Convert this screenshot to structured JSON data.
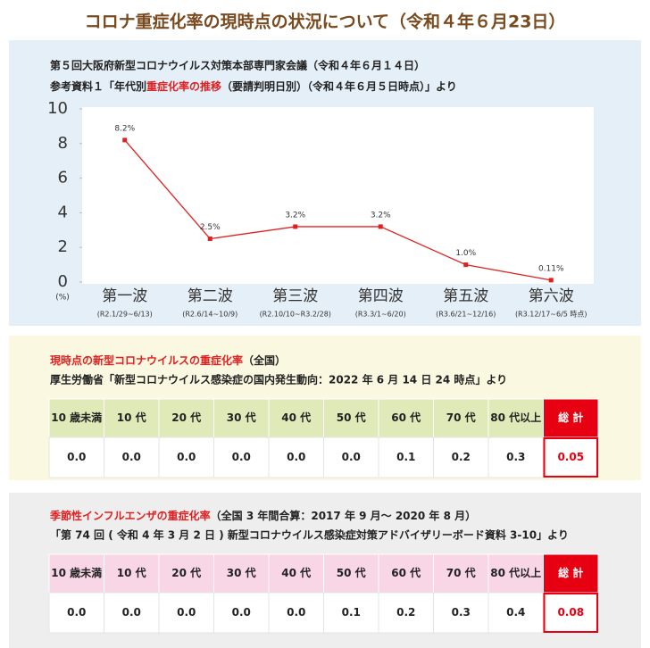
{
  "header": {
    "title": "コロナ重症化率の現時点の状況について（令和４年６月23日）"
  },
  "chart_source": {
    "line1": "第５回大阪府新型コロナウイルス対策本部専門家会議（令和４年６月１４日）",
    "line2_before": "参考資料１「年代別",
    "line2_highlight": "重症化率の推移",
    "line2_after": "（要請判明日別）（令和４年６月５日時点）」より"
  },
  "chart_data": {
    "type": "line",
    "y_unit": "(%)",
    "categories": [
      "第一波",
      "第二波",
      "第三波",
      "第四波",
      "第五波",
      "第六波"
    ],
    "category_notes": [
      "(R2.1/29~6/13)",
      "(R2.6/14~10/9)",
      "(R2.10/10~R3.2/28)",
      "(R3.3/1~6/20)",
      "(R3.6/21~12/16)",
      "(R3.12/17~6/5 時点)"
    ],
    "values": [
      8.2,
      2.5,
      3.2,
      3.2,
      1.0,
      0.11
    ],
    "value_labels": [
      "8.2%",
      "2.5%",
      "3.2%",
      "3.2%",
      "1.0%",
      "0.11%"
    ],
    "color": "#e02020",
    "ylim": [
      0,
      10
    ],
    "yticks": [
      0,
      2,
      4,
      6,
      8,
      10
    ]
  },
  "tables": [
    {
      "title": "現時点の新型コロナウイルスの重症化率",
      "title_note": "（全国）",
      "source": "厚生労働省「新型コロナウイルス感染症の国内発生動向：2022 年 6 月 14 日 24 時点」より",
      "header_color": "#dfeab8",
      "header": [
        "10 歳未満",
        "10 代",
        "20 代",
        "30 代",
        "40 代",
        "50 代",
        "60 代",
        "70 代",
        "80 代以上",
        "総 計"
      ],
      "values": [
        "0.0",
        "0.0",
        "0.0",
        "0.0",
        "0.0",
        "0.0",
        "0.1",
        "0.2",
        "0.3",
        "0.05"
      ]
    },
    {
      "title": "季節性インフルエンザの重症化率",
      "title_note": "（全国 3 年間合算：2017 年 9 月～ 2020 年 8 月）",
      "source": "「第 74 回 ( 令和 4 年 3 月 2 日 ) 新型コロナウイルス感染症対策アドバイザリーボード資料 3-10」より",
      "header_color": "#f8d6e6",
      "header": [
        "10 歳未満",
        "10 代",
        "20 代",
        "30 代",
        "40 代",
        "50 代",
        "60 代",
        "70 代",
        "80 代以上",
        "総 計"
      ],
      "values": [
        "0.0",
        "0.0",
        "0.0",
        "0.0",
        "0.0",
        "0.1",
        "0.2",
        "0.3",
        "0.4",
        "0.08"
      ]
    }
  ]
}
